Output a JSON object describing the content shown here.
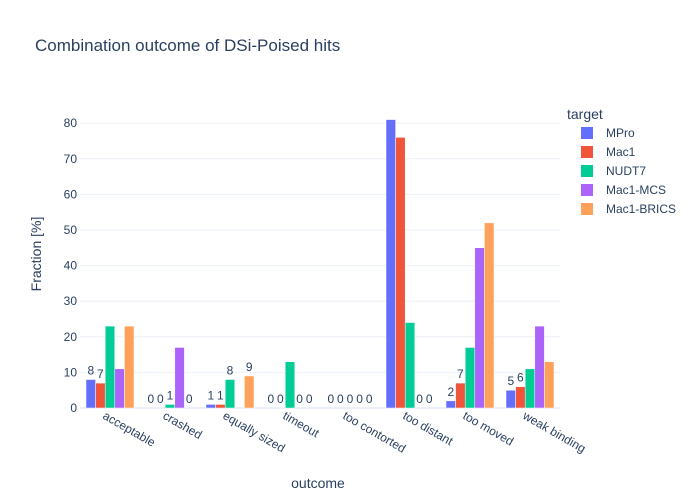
{
  "chart_data": {
    "type": "bar",
    "title": "Combination outcome of DSi-Poised hits",
    "xlabel": "outcome",
    "ylabel": "Fraction [%]",
    "ylim": [
      0,
      86.5
    ],
    "yticks": [
      0,
      10,
      20,
      30,
      40,
      50,
      60,
      70,
      80
    ],
    "grid": true,
    "legend_title": "target",
    "legend_position": "top-right",
    "categories": [
      "acceptable",
      "crashed",
      "equally sized",
      "timeout",
      "too contorted",
      "too distant",
      "too moved",
      "weak binding"
    ],
    "series": [
      {
        "name": "MPro",
        "color": "#636efa",
        "values": [
          8,
          0,
          1,
          0,
          0,
          81,
          2,
          5
        ],
        "labels": [
          "8",
          "0",
          "1",
          "0",
          "0",
          "",
          "2",
          "5"
        ]
      },
      {
        "name": "Mac1",
        "color": "#ef553b",
        "values": [
          7,
          0,
          1,
          0,
          0,
          76,
          7,
          6
        ],
        "labels": [
          "7",
          "0",
          "1",
          "0",
          "0",
          "",
          "7",
          "6"
        ]
      },
      {
        "name": "NUDT7",
        "color": "#00cc96",
        "values": [
          23,
          1,
          8,
          13,
          0,
          24,
          17,
          11
        ],
        "labels": [
          "",
          "1",
          "8",
          "",
          "0",
          "",
          "",
          ""
        ]
      },
      {
        "name": "Mac1-MCS",
        "color": "#ab63fa",
        "values": [
          11,
          17,
          0,
          0,
          0,
          0,
          45,
          23
        ],
        "labels": [
          "",
          "",
          "",
          "0",
          "0",
          "0",
          "",
          ""
        ]
      },
      {
        "name": "Mac1-BRICS",
        "color": "#ffa15a",
        "values": [
          23,
          0,
          9,
          0,
          0,
          0,
          52,
          13
        ],
        "labels": [
          "",
          "0",
          "9",
          "0",
          "0",
          "0",
          "",
          ""
        ]
      }
    ]
  }
}
